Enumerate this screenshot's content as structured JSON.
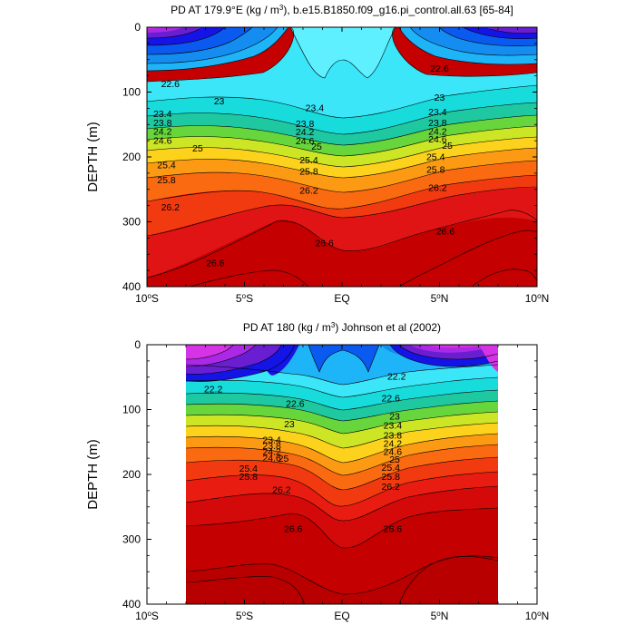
{
  "chart_data": [
    {
      "type": "contour",
      "title": "PD AT 179.9°E (kg / m³), b.e15.B1850.f09_g16.pi_control.all.63 [65-84]",
      "title_parts": {
        "main": "PD AT 179.9°E (kg / m",
        "sup": "3",
        "tail": "), b.e15.B1850.f09_g16.pi_control.all.63 [65-84]"
      },
      "ylabel": "DEPTH (m)",
      "xlim": [
        -10,
        10
      ],
      "ylim": [
        0,
        400
      ],
      "data_xrange": [
        -10,
        10
      ],
      "x_ticks": [
        {
          "value": -10,
          "label": "10",
          "sup": "o",
          "suffix": "S"
        },
        {
          "value": -5,
          "label": "5",
          "sup": "o",
          "suffix": "S"
        },
        {
          "value": 0,
          "label": "EQ",
          "sup": "",
          "suffix": ""
        },
        {
          "value": 5,
          "label": "5",
          "sup": "o",
          "suffix": "N"
        },
        {
          "value": 10,
          "label": "10",
          "sup": "o",
          "suffix": "N"
        }
      ],
      "y_ticks": [
        "0",
        "100",
        "200",
        "300",
        "400"
      ],
      "y_tick_values": [
        0,
        100,
        200,
        300,
        400
      ],
      "contour_labels": [
        {
          "text": "22.6",
          "x": -8.8,
          "y": 87
        },
        {
          "text": "22.6",
          "x": 5.0,
          "y": 63
        },
        {
          "text": "23",
          "x": -6.3,
          "y": 113
        },
        {
          "text": "23",
          "x": 5.0,
          "y": 108
        },
        {
          "text": "23.4",
          "x": -1.4,
          "y": 124
        },
        {
          "text": "23.4",
          "x": 4.9,
          "y": 130
        },
        {
          "text": "23.4",
          "x": -9.2,
          "y": 133
        },
        {
          "text": "23.8",
          "x": -9.2,
          "y": 147
        },
        {
          "text": "23.8",
          "x": -1.9,
          "y": 148
        },
        {
          "text": "23.8",
          "x": 4.9,
          "y": 147
        },
        {
          "text": "24.2",
          "x": -9.2,
          "y": 160
        },
        {
          "text": "24.2",
          "x": -1.9,
          "y": 161
        },
        {
          "text": "24.2",
          "x": 4.9,
          "y": 160
        },
        {
          "text": "24.6",
          "x": -9.2,
          "y": 174
        },
        {
          "text": "24.6",
          "x": -1.9,
          "y": 175
        },
        {
          "text": "24.6",
          "x": 4.9,
          "y": 172
        },
        {
          "text": "25",
          "x": -7.4,
          "y": 186
        },
        {
          "text": "25",
          "x": -1.3,
          "y": 183
        },
        {
          "text": "25",
          "x": 5.4,
          "y": 182
        },
        {
          "text": "25.4",
          "x": -9.0,
          "y": 212
        },
        {
          "text": "25.4",
          "x": -1.7,
          "y": 204
        },
        {
          "text": "25.4",
          "x": 4.8,
          "y": 199
        },
        {
          "text": "25.8",
          "x": -9.0,
          "y": 235
        },
        {
          "text": "25.8",
          "x": -1.7,
          "y": 222
        },
        {
          "text": "25.8",
          "x": 4.8,
          "y": 219
        },
        {
          "text": "26.2",
          "x": -1.7,
          "y": 251
        },
        {
          "text": "26.2",
          "x": 4.9,
          "y": 247
        },
        {
          "text": "26.2",
          "x": -8.8,
          "y": 277
        },
        {
          "text": "26.6",
          "x": -0.9,
          "y": 332
        },
        {
          "text": "26.6",
          "x": 5.3,
          "y": 314
        },
        {
          "text": "26.6",
          "x": -6.5,
          "y": 363
        }
      ]
    },
    {
      "type": "contour",
      "title": "PD AT 180 (kg / m³) Johnson et al (2002)",
      "title_parts": {
        "main": "PD AT 180 (kg / m",
        "sup": "3",
        "tail": ") Johnson et al (2002)"
      },
      "ylabel": "DEPTH (m)",
      "xlim": [
        -10,
        10
      ],
      "ylim": [
        0,
        400
      ],
      "data_xrange": [
        -8,
        8
      ],
      "x_ticks": [
        {
          "value": -10,
          "label": "10",
          "sup": "o",
          "suffix": "S"
        },
        {
          "value": -5,
          "label": "5",
          "sup": "o",
          "suffix": "S"
        },
        {
          "value": 0,
          "label": "EQ",
          "sup": "",
          "suffix": ""
        },
        {
          "value": 5,
          "label": "5",
          "sup": "o",
          "suffix": "N"
        },
        {
          "value": 10,
          "label": "10",
          "sup": "o",
          "suffix": "N"
        }
      ],
      "y_ticks": [
        "0",
        "100",
        "200",
        "300",
        "400"
      ],
      "y_tick_values": [
        0,
        100,
        200,
        300,
        400
      ],
      "contour_labels": [
        {
          "text": "22.2",
          "x": -6.6,
          "y": 68
        },
        {
          "text": "22.2",
          "x": 2.8,
          "y": 48
        },
        {
          "text": "22.6",
          "x": -2.4,
          "y": 90
        },
        {
          "text": "22.6",
          "x": 2.5,
          "y": 82
        },
        {
          "text": "23",
          "x": -2.7,
          "y": 122
        },
        {
          "text": "23",
          "x": 2.7,
          "y": 110
        },
        {
          "text": "23.4",
          "x": -3.6,
          "y": 146
        },
        {
          "text": "23.4",
          "x": 2.6,
          "y": 124
        },
        {
          "text": "23.8",
          "x": -3.6,
          "y": 155
        },
        {
          "text": "23.8",
          "x": 2.6,
          "y": 139
        },
        {
          "text": "24.2",
          "x": -3.6,
          "y": 164
        },
        {
          "text": "24.2",
          "x": 2.6,
          "y": 152
        },
        {
          "text": "24.6",
          "x": -3.6,
          "y": 174
        },
        {
          "text": "24.6",
          "x": 2.6,
          "y": 164
        },
        {
          "text": "25",
          "x": -3.0,
          "y": 175
        },
        {
          "text": "25",
          "x": 2.7,
          "y": 176
        },
        {
          "text": "25.4",
          "x": -4.8,
          "y": 190
        },
        {
          "text": "25.4",
          "x": 2.5,
          "y": 189
        },
        {
          "text": "25.8",
          "x": -4.8,
          "y": 203
        },
        {
          "text": "25.8",
          "x": 2.5,
          "y": 203
        },
        {
          "text": "26.2",
          "x": -3.1,
          "y": 223
        },
        {
          "text": "26.2",
          "x": 2.5,
          "y": 218
        },
        {
          "text": "26.6",
          "x": -2.5,
          "y": 283
        },
        {
          "text": "26.6",
          "x": 2.6,
          "y": 283
        }
      ]
    }
  ]
}
